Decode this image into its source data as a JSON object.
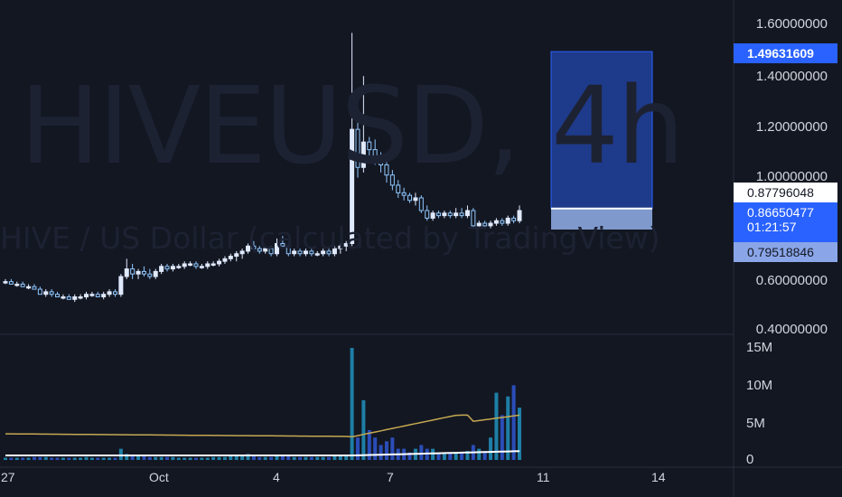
{
  "watermark": {
    "symbol": "HIVEUSD, 4h",
    "description": "HIVE / US Dollar (calculated by TradingView)"
  },
  "price_axis": {
    "ticks": [
      "1.60000000",
      "1.40000000",
      "1.20000000",
      "1.00000000",
      "0.60000000",
      "0.40000000"
    ]
  },
  "volume_axis": {
    "ticks": [
      "15M",
      "10M",
      "5M",
      "0"
    ]
  },
  "time_axis": {
    "ticks": [
      "27",
      "Oct",
      "4",
      "7",
      "11",
      "14"
    ]
  },
  "price_tags": {
    "top": "1.49631609",
    "mark": "0.87796048",
    "last": "0.86650477",
    "countdown": "01:21:57",
    "bottom": "0.79518846"
  },
  "colors": {
    "background": "#131722",
    "up": "#2962ff",
    "candle_up": "#e0eaff",
    "candle_down": "#90c8ff",
    "volume_up": "#1e7fa6",
    "volume_ma": "#c5a951",
    "last_tag": "#2962ff"
  },
  "chart_data": {
    "type": "candlestick",
    "symbol": "HIVEUSD",
    "interval": "4h",
    "ylim": [
      0.4,
      1.62
    ],
    "volume_ylim": [
      0,
      16000000
    ],
    "candles": [
      [
        0.59,
        0.6,
        0.58,
        0.59
      ],
      [
        0.59,
        0.6,
        0.58,
        0.58
      ],
      [
        0.58,
        0.59,
        0.57,
        0.58
      ],
      [
        0.58,
        0.59,
        0.57,
        0.57
      ],
      [
        0.57,
        0.58,
        0.56,
        0.57
      ],
      [
        0.57,
        0.58,
        0.56,
        0.56
      ],
      [
        0.56,
        0.57,
        0.54,
        0.54
      ],
      [
        0.54,
        0.56,
        0.53,
        0.55
      ],
      [
        0.55,
        0.56,
        0.53,
        0.54
      ],
      [
        0.54,
        0.55,
        0.53,
        0.53
      ],
      [
        0.53,
        0.54,
        0.52,
        0.53
      ],
      [
        0.53,
        0.54,
        0.52,
        0.52
      ],
      [
        0.52,
        0.54,
        0.51,
        0.53
      ],
      [
        0.53,
        0.54,
        0.52,
        0.53
      ],
      [
        0.53,
        0.55,
        0.52,
        0.54
      ],
      [
        0.54,
        0.55,
        0.53,
        0.54
      ],
      [
        0.54,
        0.55,
        0.53,
        0.53
      ],
      [
        0.53,
        0.55,
        0.52,
        0.54
      ],
      [
        0.54,
        0.56,
        0.53,
        0.55
      ],
      [
        0.55,
        0.56,
        0.53,
        0.54
      ],
      [
        0.54,
        0.62,
        0.53,
        0.61
      ],
      [
        0.61,
        0.68,
        0.6,
        0.64
      ],
      [
        0.64,
        0.66,
        0.6,
        0.62
      ],
      [
        0.62,
        0.64,
        0.6,
        0.63
      ],
      [
        0.63,
        0.65,
        0.61,
        0.62
      ],
      [
        0.62,
        0.64,
        0.6,
        0.61
      ],
      [
        0.61,
        0.64,
        0.6,
        0.63
      ],
      [
        0.63,
        0.66,
        0.62,
        0.65
      ],
      [
        0.65,
        0.66,
        0.63,
        0.64
      ],
      [
        0.64,
        0.66,
        0.63,
        0.65
      ],
      [
        0.65,
        0.66,
        0.64,
        0.65
      ],
      [
        0.65,
        0.67,
        0.64,
        0.66
      ],
      [
        0.66,
        0.67,
        0.65,
        0.66
      ],
      [
        0.66,
        0.67,
        0.64,
        0.65
      ],
      [
        0.65,
        0.66,
        0.64,
        0.65
      ],
      [
        0.65,
        0.67,
        0.64,
        0.66
      ],
      [
        0.66,
        0.67,
        0.65,
        0.66
      ],
      [
        0.66,
        0.68,
        0.65,
        0.67
      ],
      [
        0.67,
        0.69,
        0.66,
        0.68
      ],
      [
        0.68,
        0.7,
        0.67,
        0.69
      ],
      [
        0.69,
        0.71,
        0.67,
        0.7
      ],
      [
        0.7,
        0.72,
        0.68,
        0.71
      ],
      [
        0.71,
        0.74,
        0.7,
        0.73
      ],
      [
        0.73,
        0.75,
        0.71,
        0.72
      ],
      [
        0.72,
        0.73,
        0.7,
        0.71
      ],
      [
        0.71,
        0.73,
        0.7,
        0.72
      ],
      [
        0.72,
        0.73,
        0.69,
        0.7
      ],
      [
        0.7,
        0.76,
        0.69,
        0.74
      ],
      [
        0.74,
        0.77,
        0.72,
        0.73
      ],
      [
        0.73,
        0.74,
        0.69,
        0.7
      ],
      [
        0.7,
        0.72,
        0.69,
        0.71
      ],
      [
        0.71,
        0.72,
        0.69,
        0.7
      ],
      [
        0.7,
        0.72,
        0.69,
        0.71
      ],
      [
        0.71,
        0.72,
        0.69,
        0.7
      ],
      [
        0.7,
        0.71,
        0.69,
        0.7
      ],
      [
        0.7,
        0.72,
        0.69,
        0.71
      ],
      [
        0.71,
        0.72,
        0.69,
        0.7
      ],
      [
        0.7,
        0.73,
        0.69,
        0.72
      ],
      [
        0.72,
        0.74,
        0.7,
        0.73
      ],
      [
        0.73,
        0.75,
        0.71,
        0.74
      ],
      [
        0.74,
        1.57,
        0.73,
        1.19
      ],
      [
        1.19,
        1.22,
        1.0,
        1.04
      ],
      [
        1.04,
        1.4,
        1.02,
        1.14
      ],
      [
        1.14,
        1.16,
        1.08,
        1.11
      ],
      [
        1.11,
        1.15,
        1.05,
        1.08
      ],
      [
        1.08,
        1.1,
        1.02,
        1.05
      ],
      [
        1.05,
        1.08,
        0.98,
        1.01
      ],
      [
        1.01,
        1.03,
        0.95,
        0.97
      ],
      [
        0.97,
        0.99,
        0.92,
        0.94
      ],
      [
        0.94,
        0.96,
        0.91,
        0.93
      ],
      [
        0.93,
        0.94,
        0.9,
        0.91
      ],
      [
        0.91,
        0.94,
        0.89,
        0.92
      ],
      [
        0.92,
        0.93,
        0.86,
        0.87
      ],
      [
        0.87,
        0.89,
        0.83,
        0.84
      ],
      [
        0.84,
        0.87,
        0.83,
        0.86
      ],
      [
        0.86,
        0.87,
        0.84,
        0.85
      ],
      [
        0.85,
        0.87,
        0.84,
        0.86
      ],
      [
        0.86,
        0.87,
        0.84,
        0.85
      ],
      [
        0.85,
        0.88,
        0.84,
        0.86
      ],
      [
        0.86,
        0.88,
        0.84,
        0.85
      ],
      [
        0.85,
        0.89,
        0.84,
        0.87
      ],
      [
        0.87,
        0.88,
        0.8,
        0.81
      ],
      [
        0.81,
        0.83,
        0.8,
        0.82
      ],
      [
        0.82,
        0.83,
        0.8,
        0.81
      ],
      [
        0.81,
        0.83,
        0.8,
        0.82
      ],
      [
        0.82,
        0.84,
        0.81,
        0.83
      ],
      [
        0.83,
        0.84,
        0.81,
        0.82
      ],
      [
        0.82,
        0.85,
        0.81,
        0.84
      ],
      [
        0.84,
        0.85,
        0.82,
        0.83
      ],
      [
        0.83,
        0.89,
        0.82,
        0.87
      ]
    ],
    "volume_millions": [
      0.3,
      0.3,
      0.3,
      0.3,
      0.3,
      0.4,
      0.4,
      0.4,
      0.3,
      0.3,
      0.3,
      0.3,
      0.3,
      0.3,
      0.4,
      0.3,
      0.3,
      0.3,
      0.3,
      0.3,
      1.5,
      0.8,
      0.6,
      0.5,
      0.5,
      0.4,
      0.4,
      0.4,
      0.4,
      0.4,
      0.3,
      0.3,
      0.3,
      0.3,
      0.3,
      0.3,
      0.4,
      0.4,
      0.4,
      0.5,
      0.5,
      0.6,
      0.8,
      0.5,
      0.4,
      0.4,
      0.4,
      0.6,
      0.5,
      0.5,
      0.4,
      0.4,
      0.4,
      0.4,
      0.4,
      0.4,
      0.4,
      0.5,
      0.6,
      0.6,
      15.0,
      3.0,
      8.0,
      4.0,
      3.0,
      2.0,
      2.5,
      3.0,
      1.5,
      1.5,
      1.0,
      1.5,
      2.0,
      1.5,
      1.5,
      1.0,
      1.0,
      1.0,
      1.0,
      1.0,
      1.2,
      2.0,
      1.5,
      1.2,
      3.0,
      9.0,
      6.0,
      8.5,
      10.0,
      7.0
    ],
    "volume_ma_millions_start": 3.5,
    "volume_ma_millions_end": 6.0
  }
}
